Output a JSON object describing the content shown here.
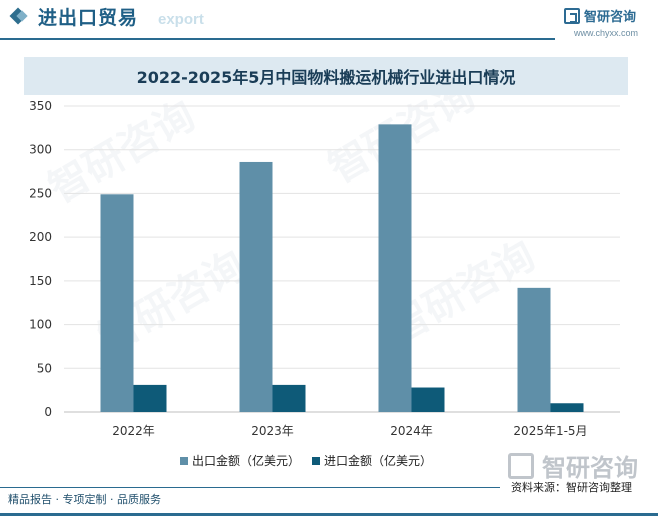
{
  "header": {
    "title": "进出口贸易",
    "subtitle": "export",
    "brand_name": "智研咨询",
    "brand_url": "www.chyxx.com"
  },
  "chart_data": {
    "type": "bar",
    "title": "2022-2025年5月中国物料搬运机械行业进出口情况",
    "categories": [
      "2022年",
      "2023年",
      "2024年",
      "2025年1-5月"
    ],
    "series": [
      {
        "name": "出口金额（亿美元）",
        "values": [
          249,
          286,
          329,
          142
        ],
        "color": "#5f8fa8"
      },
      {
        "name": "进口金额（亿美元）",
        "values": [
          31,
          31,
          28,
          10
        ],
        "color": "#0e5a78"
      }
    ],
    "ylim": [
      0,
      350
    ],
    "yticks": [
      "0",
      "50",
      "100",
      "150",
      "200",
      "250",
      "300",
      "350"
    ],
    "grid": true,
    "legend_position": "bottom"
  },
  "source": "资料来源：智研咨询整理",
  "footer": "精品报告 · 专项定制 · 品质服务",
  "watermark": {
    "text": "智研咨询"
  }
}
